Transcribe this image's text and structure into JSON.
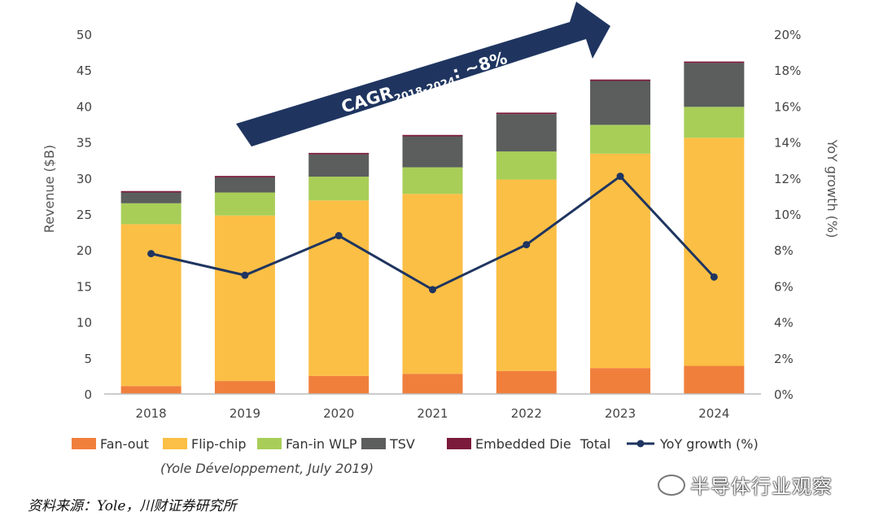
{
  "chart_data": {
    "type": "bar",
    "stacked": true,
    "categories": [
      "2018",
      "2019",
      "2020",
      "2021",
      "2022",
      "2023",
      "2024"
    ],
    "series": [
      {
        "name": "Fan-out",
        "color": "#f07f3c",
        "values": [
          1.1,
          1.8,
          2.5,
          2.8,
          3.2,
          3.6,
          3.9
        ]
      },
      {
        "name": "Flip-chip",
        "color": "#fbbf45",
        "values": [
          22.5,
          23.0,
          24.4,
          25.0,
          26.6,
          29.8,
          31.7
        ]
      },
      {
        "name": "Fan-in WLP",
        "color": "#a8ce58",
        "values": [
          2.9,
          3.2,
          3.3,
          3.7,
          3.9,
          4.0,
          4.3
        ]
      },
      {
        "name": "TSV",
        "color": "#5b5e5d",
        "values": [
          1.5,
          2.1,
          3.1,
          4.3,
          5.2,
          6.1,
          6.1
        ]
      },
      {
        "name": "Embedded Die",
        "color": "#7b1a3a",
        "values": [
          0.2,
          0.2,
          0.2,
          0.2,
          0.2,
          0.2,
          0.2
        ]
      }
    ],
    "total_label": "Total",
    "line": {
      "name": "YoY growth (%)",
      "color": "#1f3560",
      "values": [
        7.8,
        6.6,
        8.8,
        5.8,
        8.3,
        12.1,
        6.5
      ]
    },
    "ylabel": "Revenue ($B)",
    "ylim": [
      0,
      50
    ],
    "yticks": [
      "0",
      "5",
      "10",
      "15",
      "20",
      "25",
      "30",
      "35",
      "40",
      "45",
      "50"
    ],
    "y2label": "YoY growth (%)",
    "y2lim": [
      0,
      20
    ],
    "y2ticks": [
      "0%",
      "2%",
      "4%",
      "6%",
      "8%",
      "10%",
      "12%",
      "14%",
      "16%",
      "18%",
      "20%"
    ],
    "arrow": {
      "main": "CAGR",
      "sub": "2018-2024",
      "suffix": ": ~8%",
      "color": "#1f3560"
    },
    "credit": "(Yole Développement, July 2019)",
    "legend_position": "bottom",
    "grid": false
  },
  "source": "资料来源：Yole，川财证券研究所",
  "watermark": "半导体行业观察"
}
